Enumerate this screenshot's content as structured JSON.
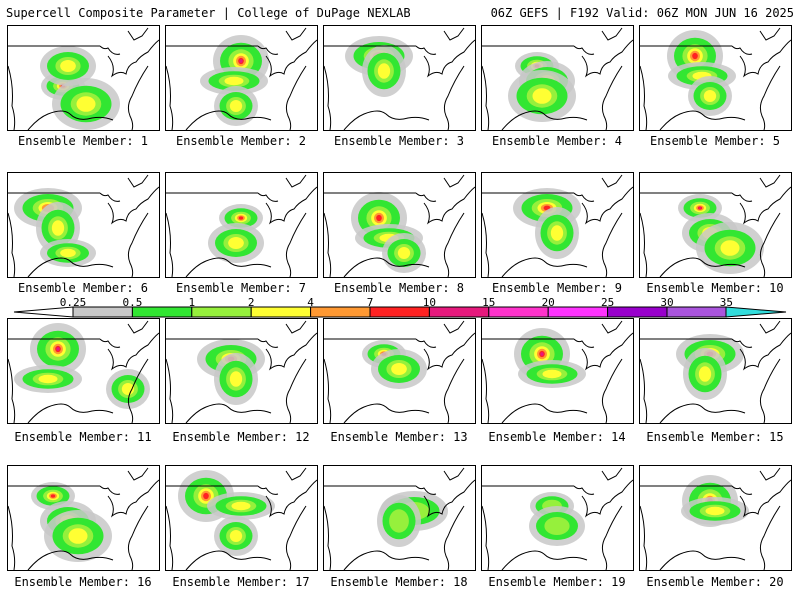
{
  "header": {
    "left_title": "Supercell Composite Parameter | College of DuPage NEXLAB",
    "right_title": "06Z GEFS | F192 Valid: 06Z MON JUN 16 2025"
  },
  "colorbar": {
    "labels": [
      "0.25",
      "0.5",
      "1",
      "2",
      "4",
      "7",
      "10",
      "15",
      "20",
      "25",
      "30",
      "35"
    ],
    "colors": [
      "#c8c8c8",
      "#32e632",
      "#96f03c",
      "#ffff33",
      "#ff9933",
      "#ff2222",
      "#e6197d",
      "#ff33cc",
      "#ff33ff",
      "#9900cc",
      "#aa55dd",
      "#33dddd"
    ]
  },
  "palette": {
    "gray": "#c8c8c8",
    "green": "#32e632",
    "lightgreen": "#96f03c",
    "yellow": "#ffff33",
    "orange": "#ff9933",
    "red": "#ff2222",
    "magenta": "#e6197d"
  },
  "panels": [
    {
      "label": "Ensemble Member: 1",
      "intensity": "red"
    },
    {
      "label": "Ensemble Member: 2",
      "intensity": "magenta"
    },
    {
      "label": "Ensemble Member: 3",
      "intensity": "red"
    },
    {
      "label": "Ensemble Member: 4",
      "intensity": "red"
    },
    {
      "label": "Ensemble Member: 5",
      "intensity": "red"
    },
    {
      "label": "Ensemble Member: 6",
      "intensity": "orange"
    },
    {
      "label": "Ensemble Member: 7",
      "intensity": "red"
    },
    {
      "label": "Ensemble Member: 8",
      "intensity": "red"
    },
    {
      "label": "Ensemble Member: 9",
      "intensity": "red"
    },
    {
      "label": "Ensemble Member: 10",
      "intensity": "magenta"
    },
    {
      "label": "Ensemble Member: 11",
      "intensity": "magenta"
    },
    {
      "label": "Ensemble Member: 12",
      "intensity": "red"
    },
    {
      "label": "Ensemble Member: 13",
      "intensity": "red"
    },
    {
      "label": "Ensemble Member: 14",
      "intensity": "magenta"
    },
    {
      "label": "Ensemble Member: 15",
      "intensity": "red"
    },
    {
      "label": "Ensemble Member: 16",
      "intensity": "red"
    },
    {
      "label": "Ensemble Member: 17",
      "intensity": "red"
    },
    {
      "label": "Ensemble Member: 18",
      "intensity": "green"
    },
    {
      "label": "Ensemble Member: 19",
      "intensity": "green"
    },
    {
      "label": "Ensemble Member: 20",
      "intensity": "red"
    }
  ]
}
